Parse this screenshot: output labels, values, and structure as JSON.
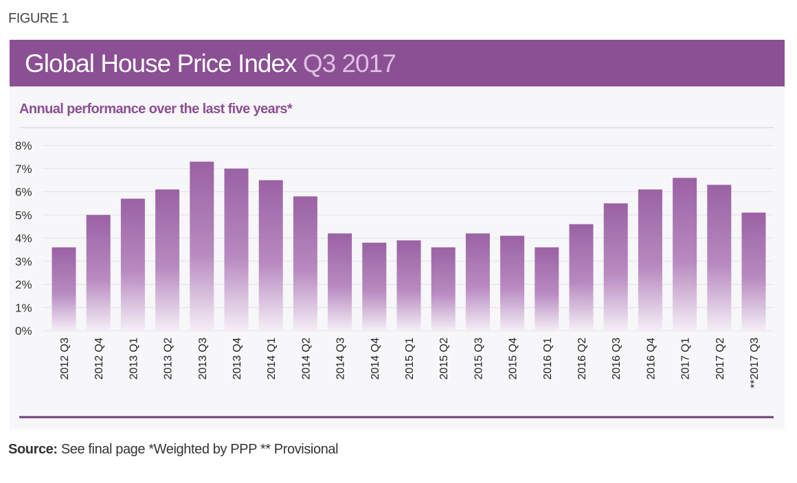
{
  "figure_label": "FIGURE 1",
  "title": {
    "main": "Global House Price Index",
    "suffix": "Q3 2017"
  },
  "subtitle": "Annual performance over the last five years*",
  "source": {
    "label": "Source:",
    "text": "See final page *Weighted by PPP ** Provisional"
  },
  "colors": {
    "banner": "#8b4f94",
    "bar_top": "#9a62a4",
    "bar_bottom": "#f4eef6",
    "accent_line": "#6f3f7a"
  },
  "chart_data": {
    "type": "bar",
    "categories": [
      "2012 Q3",
      "2012 Q4",
      "2013 Q1",
      "2013 Q2",
      "2013 Q3",
      "2013 Q4",
      "2014 Q1",
      "2014 Q2",
      "2014 Q3",
      "2014 Q4",
      "2015 Q1",
      "2015 Q2",
      "2015 Q3",
      "2015 Q4",
      "2016 Q1",
      "2016 Q2",
      "2016 Q3",
      "2016 Q4",
      "2017 Q1",
      "2017 Q2",
      "**2017 Q3"
    ],
    "values": [
      3.6,
      5.0,
      5.7,
      6.1,
      7.3,
      7.0,
      6.5,
      5.8,
      4.2,
      3.8,
      3.9,
      3.6,
      4.2,
      4.1,
      3.6,
      4.6,
      5.5,
      6.1,
      6.6,
      6.3,
      5.1
    ],
    "unit": "%",
    "ylim": [
      0,
      8
    ],
    "yticks": [
      "0%",
      "1%",
      "2%",
      "3%",
      "4%",
      "5%",
      "6%",
      "7%",
      "8%"
    ],
    "grid": true,
    "legend": "none"
  }
}
